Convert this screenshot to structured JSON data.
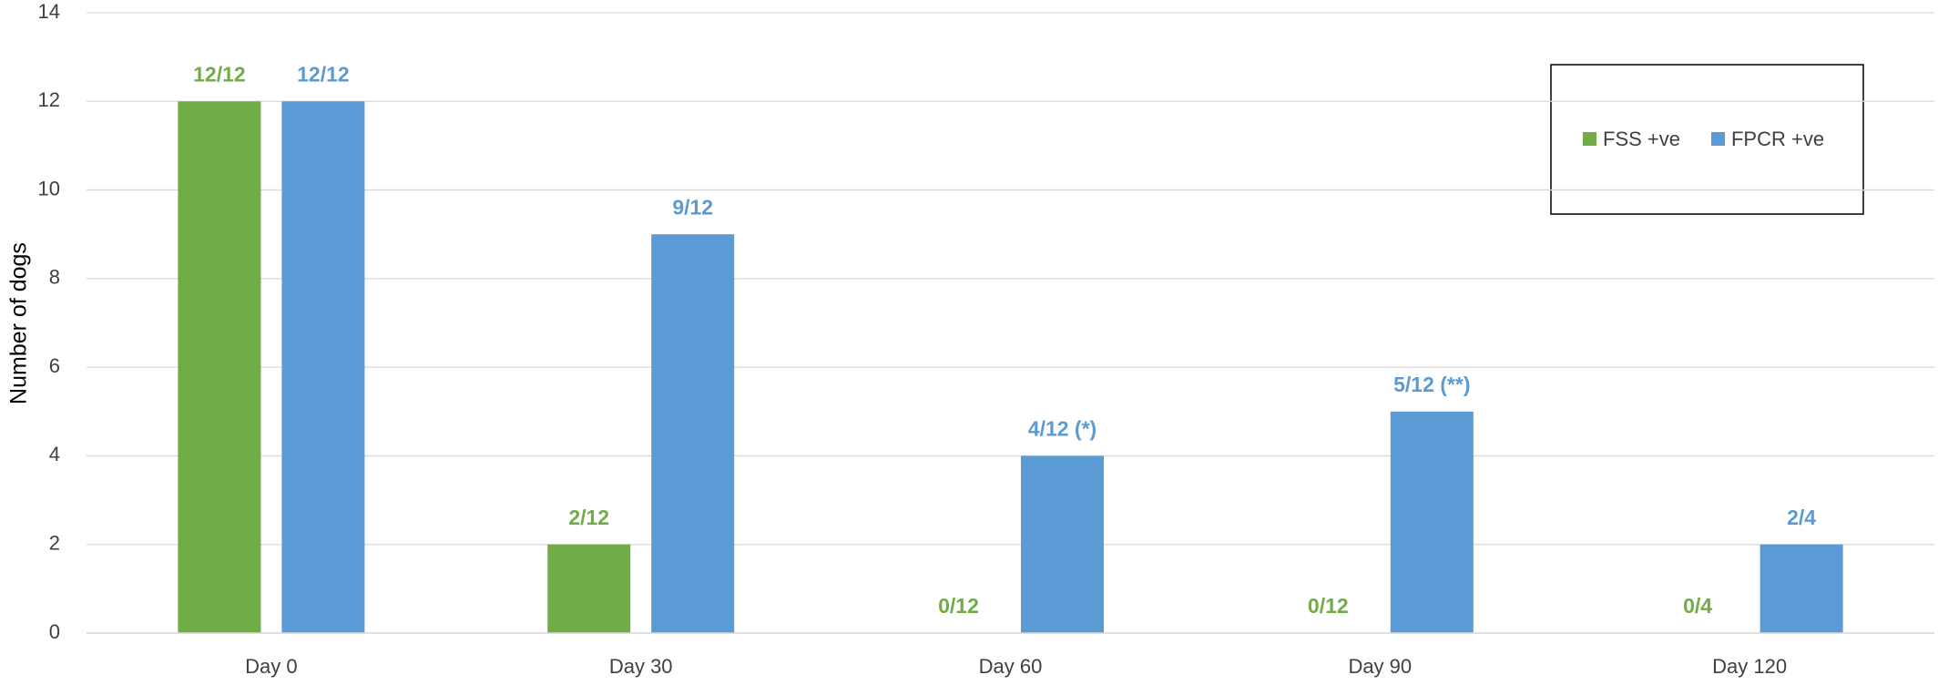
{
  "chart_data": {
    "type": "bar",
    "y_label": "Number of dogs",
    "categories": [
      "Day 0",
      "Day 30",
      "Day 60",
      "Day 90",
      "Day 120"
    ],
    "series": [
      {
        "name": "FSS +ve",
        "color": "#70ad47",
        "values": [
          12,
          2,
          0,
          0,
          0
        ],
        "value_labels": [
          "12/12",
          "2/12",
          "0/12",
          "0/12",
          "0/4"
        ]
      },
      {
        "name": "FPCR +ve",
        "color": "#5b9bd5",
        "values": [
          12,
          9,
          4,
          5,
          2
        ],
        "value_labels": [
          "12/12",
          "9/12",
          "4/12 (*)",
          "5/12 (**)",
          "2/4"
        ]
      }
    ],
    "ylim": [
      0,
      14
    ],
    "yticks": [
      0,
      2,
      4,
      6,
      8,
      10,
      12,
      14
    ],
    "grid": true
  }
}
